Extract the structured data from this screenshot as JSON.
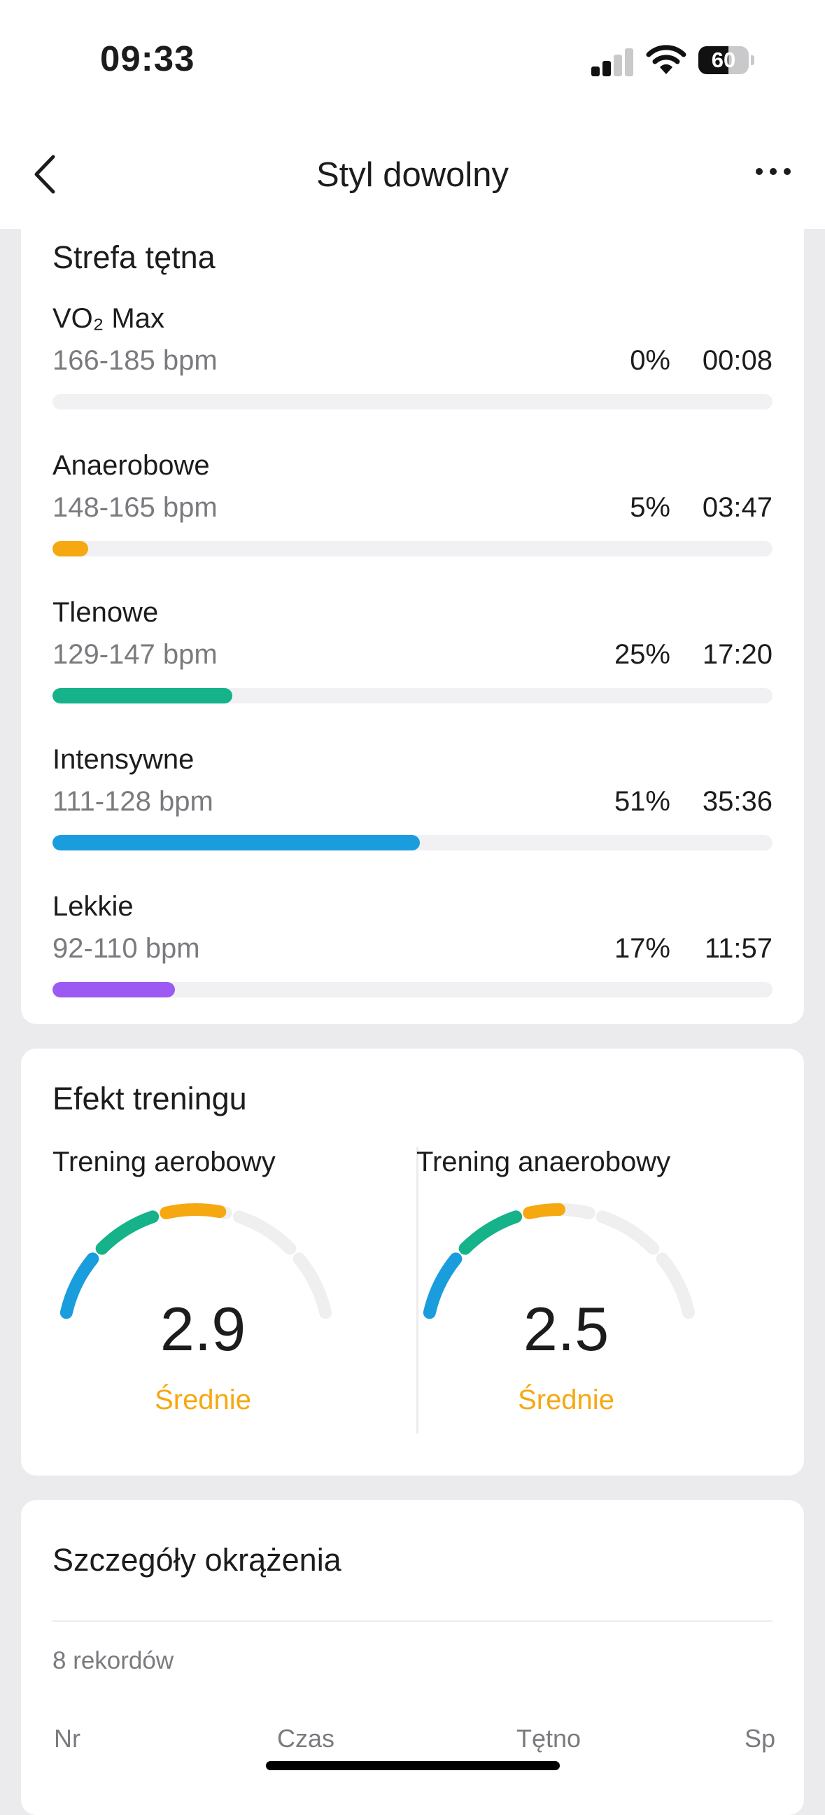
{
  "status": {
    "time": "09:33",
    "battery": "60",
    "battery_level": 0.6,
    "signal_bars_active": 2,
    "signal_bars_total": 4
  },
  "header": {
    "title": "Styl dowolny",
    "back_icon": "chevron-left-icon",
    "more_icon": "ellipsis-icon"
  },
  "zones": {
    "title": "Strefa tętna",
    "items": [
      {
        "name": "VO₂ Max",
        "range": "166-185 bpm",
        "pct": "0%",
        "time": "00:08",
        "fraction": 0.0,
        "color": "#f6a811"
      },
      {
        "name": "Anaerobowe",
        "range": "148-165 bpm",
        "pct": "5%",
        "time": "03:47",
        "fraction": 0.05,
        "color": "#f6a811"
      },
      {
        "name": "Tlenowe",
        "range": "129-147 bpm",
        "pct": "25%",
        "time": "17:20",
        "fraction": 0.25,
        "color": "#16b28a"
      },
      {
        "name": "Intensywne",
        "range": "111-128 bpm",
        "pct": "51%",
        "time": "35:36",
        "fraction": 0.51,
        "color": "#1a9ddd"
      },
      {
        "name": "Lekkie",
        "range": "92-110 bpm",
        "pct": "17%",
        "time": "11:57",
        "fraction": 0.17,
        "color": "#9d5af2"
      }
    ]
  },
  "effect": {
    "title": "Efekt treningu",
    "aerobic": {
      "label": "Trening aerobowy",
      "value": "2.9",
      "level": "Średnie",
      "score": 2.9
    },
    "anaerobic": {
      "label": "Trening anaerobowy",
      "value": "2.5",
      "level": "Średnie",
      "score": 2.5
    },
    "gauge_colors": [
      "#1a9ddd",
      "#16b28a",
      "#f6a811",
      "#efefef",
      "#efefef"
    ]
  },
  "laps": {
    "title": "Szczegóły okrążenia",
    "records": "8 rekordów",
    "columns": [
      "Nr",
      "Czas",
      "Tętno",
      "Sp"
    ]
  }
}
